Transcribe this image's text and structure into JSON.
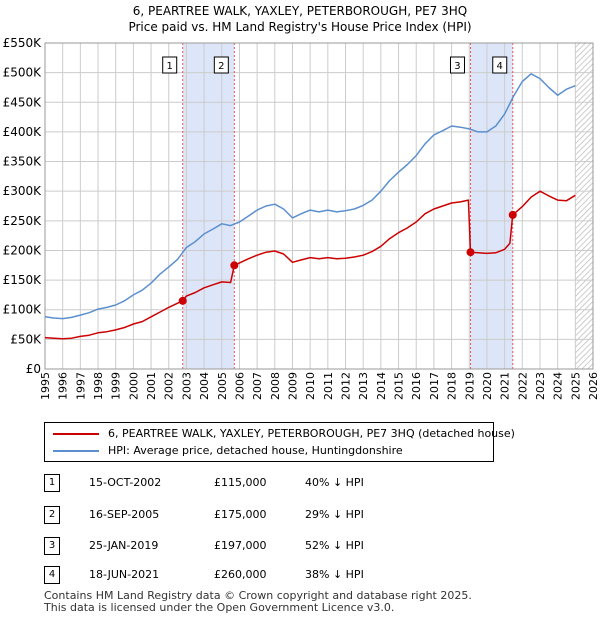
{
  "title_line1": "6, PEARTREE WALK, YAXLEY, PETERBOROUGH, PE7 3HQ",
  "title_line2": "Price paid vs. HM Land Registry's House Price Index (HPI)",
  "legend": {
    "property_label": "6, PEARTREE WALK, YAXLEY, PETERBOROUGH, PE7 3HQ (detached house)",
    "hpi_label": "HPI: Average price, detached house, Huntingdonshire"
  },
  "sales": [
    {
      "num": "1",
      "date": "15-OCT-2002",
      "price": "£115,000",
      "hpi": "40% ↓ HPI"
    },
    {
      "num": "2",
      "date": "16-SEP-2005",
      "price": "£175,000",
      "hpi": "29% ↓ HPI"
    },
    {
      "num": "3",
      "date": "25-JAN-2019",
      "price": "£197,000",
      "hpi": "52% ↓ HPI"
    },
    {
      "num": "4",
      "date": "18-JUN-2021",
      "price": "£260,000",
      "hpi": "38% ↓ HPI"
    }
  ],
  "footer_line1": "Contains HM Land Registry data © Crown copyright and database right 2025.",
  "footer_line2": "This data is licensed under the Open Government Licence v3.0.",
  "colors": {
    "property": "#cc0000",
    "hpi": "#5b8fd0",
    "shade": "#dde6f8",
    "grid": "#cccccc",
    "vline": "#ee5555"
  },
  "chart_data": {
    "type": "line",
    "title": "Price paid vs. HM Land Registry's House Price Index (HPI)",
    "xlabel": "",
    "ylabel": "",
    "xlim": [
      1995,
      2026
    ],
    "ylim": [
      0,
      550000
    ],
    "y_ticks": [
      0,
      50000,
      100000,
      150000,
      200000,
      250000,
      300000,
      350000,
      400000,
      450000,
      500000,
      550000
    ],
    "y_tick_labels": [
      "£0",
      "£50K",
      "£100K",
      "£150K",
      "£200K",
      "£250K",
      "£300K",
      "£350K",
      "£400K",
      "£450K",
      "£500K",
      "£550K"
    ],
    "x_ticks": [
      1995,
      1996,
      1997,
      1998,
      1999,
      2000,
      2001,
      2002,
      2003,
      2004,
      2005,
      2006,
      2007,
      2008,
      2009,
      2010,
      2011,
      2012,
      2013,
      2014,
      2015,
      2016,
      2017,
      2018,
      2019,
      2020,
      2021,
      2022,
      2023,
      2024,
      2025,
      2026
    ],
    "shaded_ranges": [
      [
        2002.79,
        2005.71
      ],
      [
        2019.07,
        2021.46
      ]
    ],
    "forecast_from": 2025.0,
    "series": [
      {
        "name": "HPI: Average price, detached house, Huntingdonshire",
        "x": [
          1995.0,
          1995.5,
          1996.0,
          1996.5,
          1997.0,
          1997.5,
          1998.0,
          1998.5,
          1999.0,
          1999.5,
          2000.0,
          2000.5,
          2001.0,
          2001.5,
          2002.0,
          2002.5,
          2003.0,
          2003.5,
          2004.0,
          2004.5,
          2005.0,
          2005.5,
          2006.0,
          2006.5,
          2007.0,
          2007.5,
          2008.0,
          2008.5,
          2009.0,
          2009.5,
          2010.0,
          2010.5,
          2011.0,
          2011.5,
          2012.0,
          2012.5,
          2013.0,
          2013.5,
          2014.0,
          2014.5,
          2015.0,
          2015.5,
          2016.0,
          2016.5,
          2017.0,
          2017.5,
          2018.0,
          2018.5,
          2019.0,
          2019.5,
          2020.0,
          2020.5,
          2021.0,
          2021.5,
          2022.0,
          2022.5,
          2023.0,
          2023.5,
          2024.0,
          2024.5,
          2025.0
        ],
        "values": [
          88000,
          86000,
          85000,
          87000,
          91000,
          95000,
          101000,
          104000,
          108000,
          115000,
          125000,
          133000,
          145000,
          160000,
          172000,
          185000,
          205000,
          215000,
          228000,
          236000,
          245000,
          242000,
          248000,
          258000,
          268000,
          275000,
          278000,
          270000,
          255000,
          262000,
          268000,
          265000,
          268000,
          265000,
          267000,
          270000,
          276000,
          285000,
          300000,
          318000,
          332000,
          345000,
          360000,
          380000,
          395000,
          402000,
          410000,
          408000,
          405000,
          400000,
          400000,
          410000,
          430000,
          460000,
          485000,
          498000,
          490000,
          475000,
          462000,
          472000,
          478000
        ]
      },
      {
        "name": "6, PEARTREE WALK, YAXLEY, PETERBOROUGH, PE7 3HQ (detached house)",
        "x": [
          1995.0,
          1995.5,
          1996.0,
          1996.5,
          1997.0,
          1997.5,
          1998.0,
          1998.5,
          1999.0,
          1999.5,
          2000.0,
          2000.5,
          2001.0,
          2001.5,
          2002.0,
          2002.5,
          2002.79,
          2003.0,
          2003.5,
          2004.0,
          2004.5,
          2005.0,
          2005.5,
          2005.71,
          2006.0,
          2006.5,
          2007.0,
          2007.5,
          2008.0,
          2008.5,
          2009.0,
          2009.5,
          2010.0,
          2010.5,
          2011.0,
          2011.5,
          2012.0,
          2012.5,
          2013.0,
          2013.5,
          2014.0,
          2014.5,
          2015.0,
          2015.5,
          2016.0,
          2016.5,
          2017.0,
          2017.5,
          2018.0,
          2018.5,
          2018.95,
          2019.07,
          2019.5,
          2020.0,
          2020.5,
          2021.0,
          2021.3,
          2021.46,
          2022.0,
          2022.5,
          2023.0,
          2023.5,
          2024.0,
          2024.5,
          2025.0
        ],
        "values": [
          53000,
          52000,
          51000,
          52000,
          55000,
          57000,
          61000,
          63000,
          66000,
          70000,
          76000,
          80000,
          88000,
          96000,
          104000,
          111000,
          115000,
          123000,
          129000,
          137000,
          142000,
          147000,
          146000,
          175000,
          179000,
          186000,
          192000,
          197000,
          199000,
          194000,
          180000,
          184000,
          188000,
          186000,
          188000,
          186000,
          187000,
          189000,
          192000,
          198000,
          207000,
          220000,
          230000,
          238000,
          248000,
          262000,
          270000,
          275000,
          280000,
          282000,
          285000,
          197000,
          196000,
          195000,
          196000,
          202000,
          212000,
          260000,
          274000,
          290000,
          300000,
          292000,
          285000,
          284000,
          293000
        ]
      }
    ],
    "sales_points": [
      {
        "label": "1",
        "x": 2002.79,
        "y": 115000
      },
      {
        "label": "2",
        "x": 2005.71,
        "y": 175000
      },
      {
        "label": "3",
        "x": 2019.07,
        "y": 197000
      },
      {
        "label": "4",
        "x": 2021.46,
        "y": 260000
      }
    ]
  }
}
